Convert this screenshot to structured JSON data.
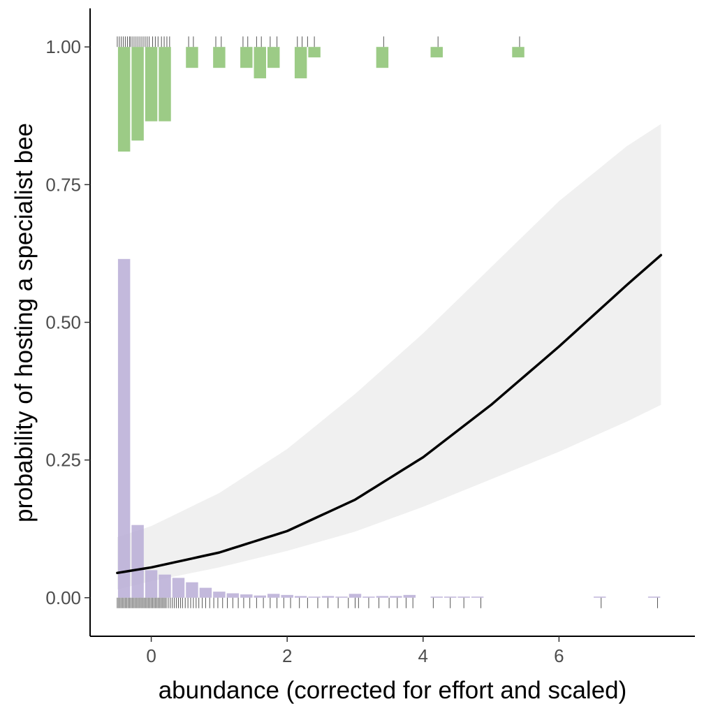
{
  "chart_data": {
    "type": "logistic-regression-histogram",
    "title": "",
    "xlabel": "abundance (corrected for effort and scaled)",
    "ylabel": "probability of hosting a specialist bee",
    "xlim": [
      -0.9,
      8.0
    ],
    "ylim": [
      -0.07,
      1.07
    ],
    "x_ticks": [
      0,
      2,
      4,
      6
    ],
    "x_tick_labels": [
      "0",
      "2",
      "4",
      "6"
    ],
    "y_ticks": [
      0,
      0.25,
      0.5,
      0.75,
      1
    ],
    "y_tick_labels": [
      "0.00",
      "0.25",
      "0.50",
      "0.75",
      "1.00"
    ],
    "grid": false,
    "colors": {
      "hosting_hist": "#9ccb86",
      "not_hosting_hist": "#b9add6",
      "fit_line": "#000000",
      "ribbon": "#f0f0f0",
      "rug": "#555555"
    },
    "hist_bin_width": 0.2,
    "fit_curve": {
      "x": [
        -0.5,
        0,
        1,
        2,
        3,
        4,
        5,
        6,
        7,
        7.5
      ],
      "y": [
        0.045,
        0.055,
        0.082,
        0.121,
        0.178,
        0.255,
        0.35,
        0.456,
        0.568,
        0.622
      ]
    },
    "confidence_band": {
      "x": [
        -0.5,
        0,
        1,
        2,
        3,
        4,
        5,
        6,
        7,
        7.5
      ],
      "lower": [
        0.015,
        0.03,
        0.055,
        0.085,
        0.12,
        0.165,
        0.215,
        0.265,
        0.32,
        0.35
      ],
      "upper": [
        0.11,
        0.13,
        0.19,
        0.27,
        0.37,
        0.48,
        0.6,
        0.72,
        0.82,
        0.86
      ]
    },
    "hosting_histogram": {
      "bin_centers": [
        -0.4,
        -0.2,
        0.0,
        0.2,
        0.6,
        1.0,
        1.4,
        1.6,
        1.8,
        2.2,
        2.4,
        3.4,
        4.2,
        5.4
      ],
      "values": [
        0.19,
        0.17,
        0.135,
        0.135,
        0.038,
        0.038,
        0.038,
        0.057,
        0.038,
        0.057,
        0.019,
        0.038,
        0.019,
        0.019
      ]
    },
    "not_hosting_histogram": {
      "bin_centers": [
        -0.4,
        -0.2,
        0.0,
        0.2,
        0.4,
        0.6,
        0.8,
        1.0,
        1.2,
        1.4,
        1.6,
        1.8,
        2.0,
        2.2,
        2.4,
        2.6,
        2.8,
        3.0,
        3.2,
        3.4,
        3.6,
        3.8,
        4.2,
        4.4,
        4.6,
        4.8,
        6.6,
        7.4
      ],
      "values": [
        0.615,
        0.132,
        0.05,
        0.042,
        0.036,
        0.028,
        0.018,
        0.011,
        0.008,
        0.006,
        0.004,
        0.007,
        0.005,
        0.003,
        0.002,
        0.003,
        0.002,
        0.007,
        0.002,
        0.003,
        0.003,
        0.005,
        0.002,
        0.002,
        0.002,
        0.002,
        0.002,
        0.002
      ]
    },
    "rug_hosting_x": [
      -0.5,
      -0.47,
      -0.44,
      -0.41,
      -0.38,
      -0.35,
      -0.32,
      -0.3,
      -0.27,
      -0.24,
      -0.21,
      -0.18,
      -0.15,
      -0.12,
      -0.09,
      -0.06,
      -0.03,
      0.02,
      0.06,
      0.1,
      0.15,
      0.19,
      0.23,
      0.27,
      0.55,
      0.62,
      0.95,
      1.03,
      1.35,
      1.42,
      1.55,
      1.62,
      1.75,
      1.85,
      2.15,
      2.22,
      2.3,
      2.4,
      3.42,
      4.22,
      5.42
    ],
    "rug_not_hosting_x": [
      -0.5,
      -0.48,
      -0.46,
      -0.44,
      -0.42,
      -0.4,
      -0.38,
      -0.36,
      -0.34,
      -0.32,
      -0.3,
      -0.28,
      -0.26,
      -0.24,
      -0.22,
      -0.2,
      -0.18,
      -0.16,
      -0.14,
      -0.12,
      -0.1,
      -0.08,
      -0.06,
      -0.04,
      -0.02,
      0.0,
      0.02,
      0.04,
      0.06,
      0.08,
      0.1,
      0.12,
      0.14,
      0.16,
      0.18,
      0.2,
      0.22,
      0.25,
      0.28,
      0.31,
      0.34,
      0.37,
      0.4,
      0.43,
      0.46,
      0.5,
      0.54,
      0.58,
      0.62,
      0.66,
      0.7,
      0.75,
      0.8,
      0.86,
      0.92,
      0.98,
      1.05,
      1.12,
      1.2,
      1.28,
      1.36,
      1.45,
      1.55,
      1.65,
      1.75,
      1.85,
      1.95,
      2.05,
      2.18,
      2.3,
      2.45,
      2.6,
      2.75,
      2.9,
      3.0,
      3.05,
      3.2,
      3.35,
      3.5,
      3.62,
      3.75,
      3.85,
      4.15,
      4.4,
      4.6,
      4.85,
      6.62,
      7.45
    ]
  }
}
